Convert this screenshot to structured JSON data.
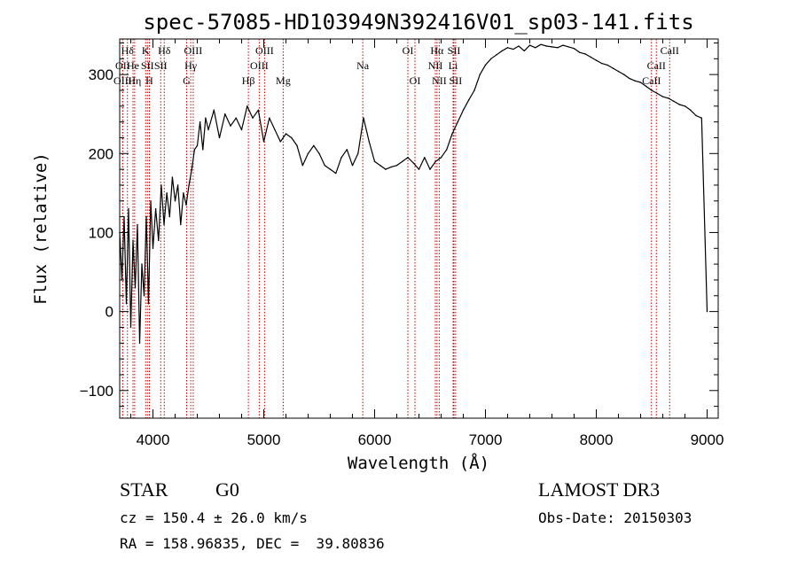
{
  "chart_data": {
    "type": "line",
    "title": "spec-57085-HD103949N392416V01_sp03-141.fits",
    "xlabel": "Wavelength (Å)",
    "ylabel": "Flux (relative)",
    "xlim": [
      3700,
      9100
    ],
    "ylim": [
      -135,
      345
    ],
    "xticks": [
      4000,
      5000,
      6000,
      7000,
      8000,
      9000
    ],
    "yticks": [
      -100,
      0,
      100,
      200,
      300
    ],
    "grid": false,
    "legend": "none",
    "series": [
      {
        "name": "flux",
        "color": "#000000",
        "x": [
          3700,
          3720,
          3740,
          3760,
          3780,
          3800,
          3820,
          3840,
          3860,
          3880,
          3900,
          3920,
          3940,
          3960,
          3980,
          4000,
          4025,
          4050,
          4075,
          4100,
          4125,
          4150,
          4175,
          4200,
          4225,
          4250,
          4275,
          4300,
          4325,
          4350,
          4375,
          4400,
          4425,
          4450,
          4475,
          4500,
          4550,
          4600,
          4650,
          4700,
          4750,
          4800,
          4850,
          4900,
          4950,
          5000,
          5050,
          5100,
          5150,
          5200,
          5250,
          5300,
          5350,
          5400,
          5450,
          5500,
          5550,
          5600,
          5650,
          5700,
          5750,
          5800,
          5850,
          5900,
          5950,
          6000,
          6050,
          6100,
          6150,
          6200,
          6250,
          6300,
          6350,
          6400,
          6450,
          6500,
          6550,
          6600,
          6650,
          6700,
          6750,
          6800,
          6850,
          6900,
          6950,
          7000,
          7050,
          7100,
          7150,
          7200,
          7250,
          7300,
          7350,
          7400,
          7450,
          7500,
          7550,
          7600,
          7650,
          7700,
          7750,
          7800,
          7850,
          7900,
          7950,
          8000,
          8050,
          8100,
          8150,
          8200,
          8250,
          8300,
          8350,
          8400,
          8450,
          8500,
          8550,
          8600,
          8650,
          8700,
          8750,
          8800,
          8850,
          8900,
          8950,
          9000
        ],
        "values": [
          100,
          40,
          120,
          10,
          130,
          -20,
          90,
          30,
          110,
          -40,
          60,
          20,
          120,
          10,
          140,
          80,
          130,
          90,
          160,
          110,
          150,
          120,
          170,
          140,
          160,
          110,
          150,
          135,
          160,
          180,
          205,
          210,
          240,
          205,
          245,
          230,
          255,
          220,
          250,
          235,
          245,
          230,
          260,
          245,
          255,
          215,
          245,
          230,
          215,
          225,
          220,
          210,
          185,
          200,
          210,
          200,
          185,
          180,
          175,
          195,
          205,
          185,
          200,
          245,
          215,
          190,
          185,
          180,
          183,
          185,
          190,
          195,
          188,
          180,
          195,
          180,
          190,
          195,
          205,
          225,
          240,
          255,
          268,
          280,
          300,
          312,
          320,
          325,
          330,
          334,
          332,
          336,
          330,
          337,
          334,
          338,
          336,
          335,
          334,
          337,
          335,
          333,
          328,
          326,
          322,
          318,
          314,
          312,
          308,
          304,
          300,
          295,
          292,
          290,
          285,
          280,
          276,
          272,
          270,
          266,
          262,
          260,
          255,
          248,
          245,
          0
        ]
      }
    ],
    "spectral_lines": [
      {
        "label": "Hδ",
        "x": 3770,
        "row": 1
      },
      {
        "label": "OII",
        "x": 3727,
        "row": 2
      },
      {
        "label": "OIII",
        "x": 3727,
        "row": 3
      },
      {
        "label": "He",
        "x": 3820,
        "row": 2
      },
      {
        "label": "Hη",
        "x": 3835,
        "row": 3
      },
      {
        "label": "K",
        "x": 3934,
        "row": 1
      },
      {
        "label": "SII",
        "x": 3950,
        "row": 2
      },
      {
        "label": "H",
        "x": 3968,
        "row": 3
      },
      {
        "label": "Hδ",
        "x": 4102,
        "row": 1
      },
      {
        "label": "SII",
        "x": 4070,
        "row": 2
      },
      {
        "label": "OIII",
        "x": 4363,
        "row": 1
      },
      {
        "label": "Hγ",
        "x": 4341,
        "row": 2
      },
      {
        "label": "G",
        "x": 4304,
        "row": 3
      },
      {
        "label": "Hβ",
        "x": 4861,
        "row": 3
      },
      {
        "label": "OIII",
        "x": 5007,
        "row": 1
      },
      {
        "label": "OIII",
        "x": 4959,
        "row": 2
      },
      {
        "label": "Mg",
        "x": 5175,
        "row": 3
      },
      {
        "label": "Na",
        "x": 5893,
        "row": 2
      },
      {
        "label": "OI",
        "x": 6300,
        "row": 1
      },
      {
        "label": "OI",
        "x": 6364,
        "row": 3
      },
      {
        "label": "Hα",
        "x": 6563,
        "row": 1
      },
      {
        "label": "SII",
        "x": 6716,
        "row": 1
      },
      {
        "label": "NII",
        "x": 6548,
        "row": 2
      },
      {
        "label": "Li",
        "x": 6708,
        "row": 2
      },
      {
        "label": "NII",
        "x": 6583,
        "row": 3
      },
      {
        "label": "SII",
        "x": 6731,
        "row": 3
      },
      {
        "label": "CaII",
        "x": 8662,
        "row": 1
      },
      {
        "label": "CaII",
        "x": 8542,
        "row": 2
      },
      {
        "label": "CaII",
        "x": 8498,
        "row": 3
      }
    ]
  },
  "info": {
    "object_class": "STAR",
    "subclass": "G0",
    "survey": "LAMOST DR3",
    "cz": "cz = 150.4 ± 26.0 km/s",
    "obs_date": "Obs-Date: 20150303",
    "coords": "RA = 158.96835, DEC =  39.80836"
  }
}
